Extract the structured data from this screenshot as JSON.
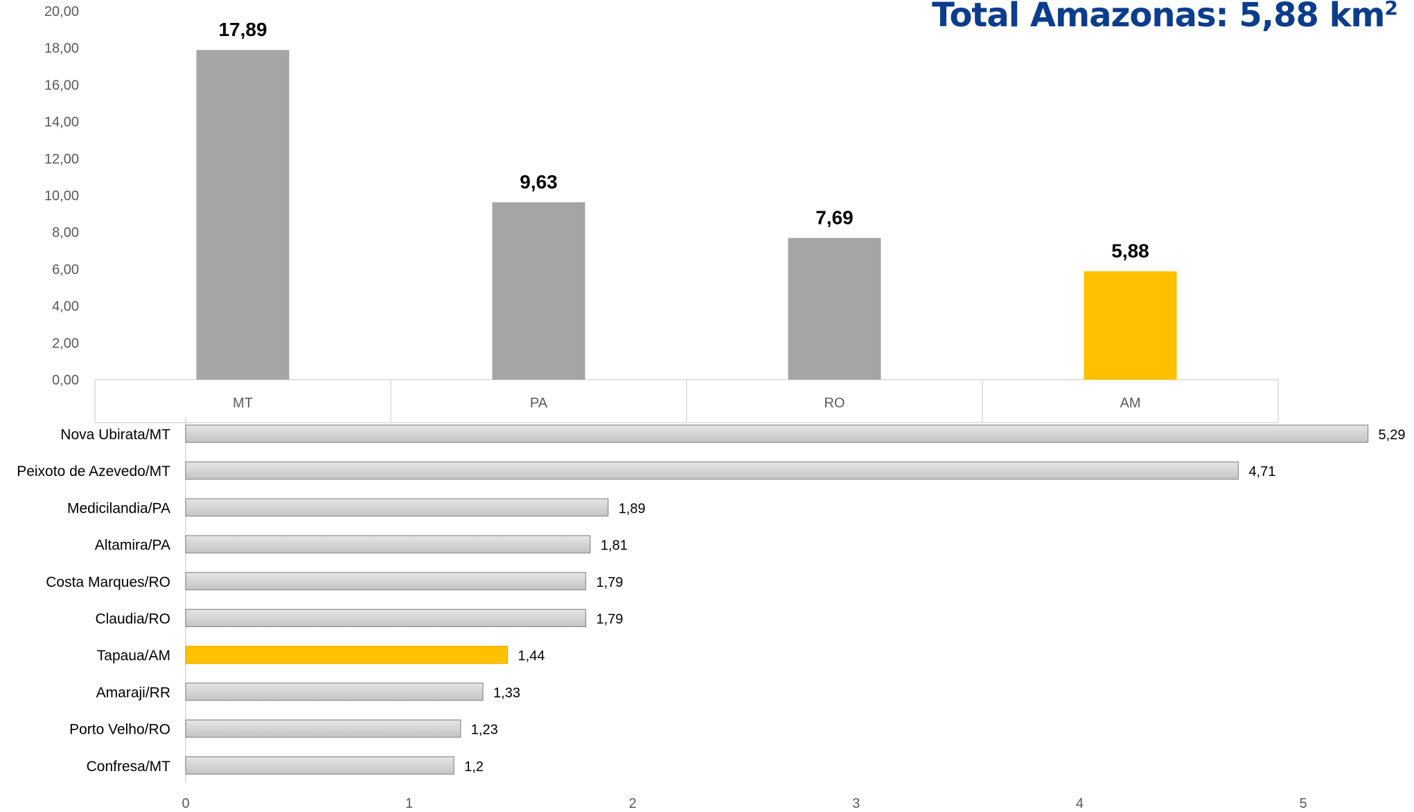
{
  "title": {
    "text": "Total Amazonas: 5,88 km",
    "superscript": "2"
  },
  "chart_data": [
    {
      "type": "bar",
      "orientation": "vertical",
      "categories": [
        "MT",
        "PA",
        "RO",
        "AM"
      ],
      "values": [
        17.89,
        9.63,
        7.69,
        5.88
      ],
      "value_labels": [
        "17,89",
        "9,63",
        "7,69",
        "5,88"
      ],
      "ylim": [
        0,
        20
      ],
      "yticks": [
        "0,00",
        "2,00",
        "4,00",
        "6,00",
        "8,00",
        "10,00",
        "12,00",
        "14,00",
        "16,00",
        "18,00",
        "20,00"
      ],
      "grid": false,
      "colors": {
        "default": "#a5a5a5",
        "highlight": "#ffc000"
      },
      "highlight": "AM"
    },
    {
      "type": "bar",
      "orientation": "horizontal",
      "categories": [
        "Nova Ubirata/MT",
        "Peixoto de Azevedo/MT",
        "Medicilandia/PA",
        "Altamira/PA",
        "Costa Marques/RO",
        "Claudia/RO",
        "Tapaua/AM",
        "Amaraji/RR",
        "Porto Velho/RO",
        "Confresa/MT"
      ],
      "values": [
        5.29,
        4.71,
        1.89,
        1.81,
        1.79,
        1.79,
        1.44,
        1.33,
        1.23,
        1.2
      ],
      "value_labels": [
        "5,29",
        "4,71",
        "1,89",
        "1,81",
        "1,79",
        "1,79",
        "1,44",
        "1,33",
        "1,23",
        "1,2"
      ],
      "xlim": [
        0,
        5.4
      ],
      "xticks": [
        "0",
        "1",
        "2",
        "3",
        "4",
        "5"
      ],
      "grid": false,
      "colors": {
        "default": "#d0d0d0",
        "highlight": "#ffc000"
      },
      "highlight": "Tapaua/AM"
    }
  ]
}
